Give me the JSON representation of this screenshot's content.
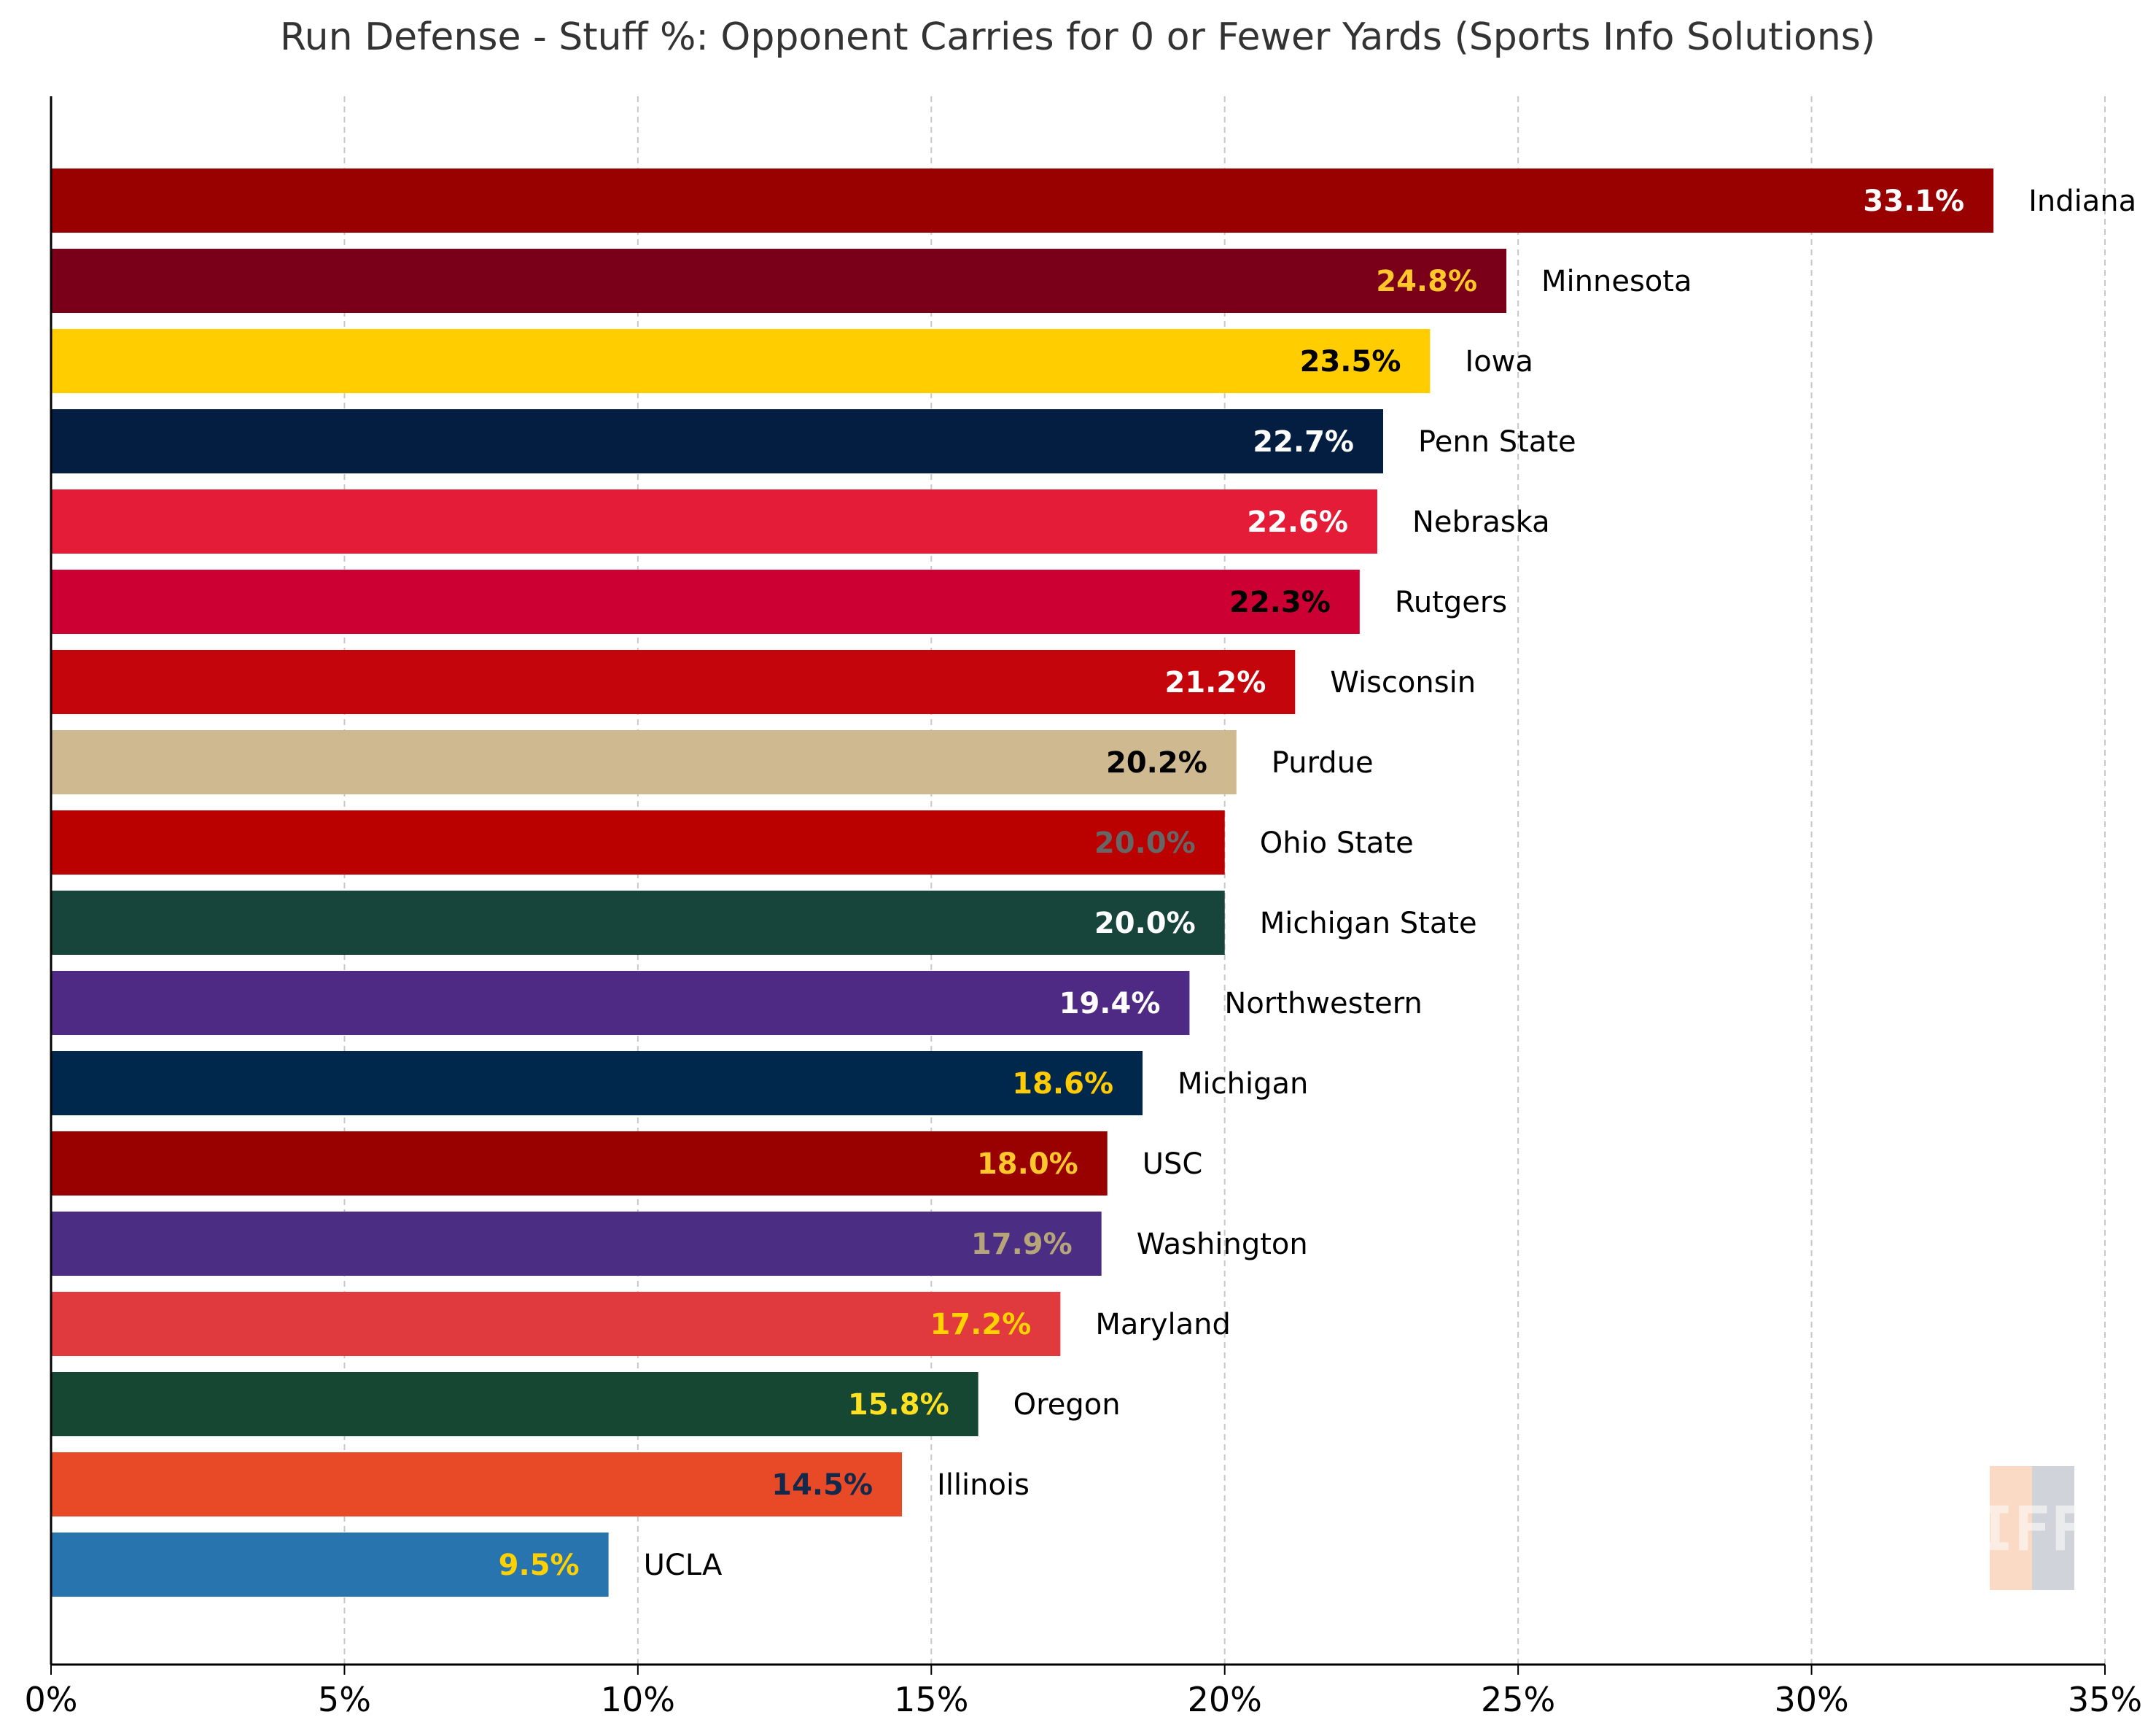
{
  "chart_data": {
    "type": "bar",
    "orientation": "horizontal",
    "title": "Run Defense - Stuff %: Opponent Carries for 0 or Fewer Yards (Sports Info Solutions)",
    "xlabel": "",
    "ylabel": "",
    "xlim": [
      0,
      35
    ],
    "x_ticks": [
      0,
      5,
      10,
      15,
      20,
      25,
      30,
      35
    ],
    "x_tick_labels": [
      "0%",
      "5%",
      "10%",
      "15%",
      "20%",
      "25%",
      "30%",
      "35%"
    ],
    "grid": "vertical dashed",
    "categories": [
      "Indiana",
      "Minnesota",
      "Iowa",
      "Penn State",
      "Nebraska",
      "Rutgers",
      "Wisconsin",
      "Purdue",
      "Ohio State",
      "Michigan State",
      "Northwestern",
      "Michigan",
      "USC",
      "Washington",
      "Maryland",
      "Oregon",
      "Illinois",
      "UCLA"
    ],
    "values": [
      33.1,
      24.8,
      23.5,
      22.7,
      22.6,
      22.3,
      21.2,
      20.2,
      20.0,
      20.0,
      19.4,
      18.6,
      18.0,
      17.9,
      17.2,
      15.8,
      14.5,
      9.5
    ],
    "value_labels": [
      "33.1%",
      "24.8%",
      "23.5%",
      "22.7%",
      "22.6%",
      "22.3%",
      "21.2%",
      "20.2%",
      "20.0%",
      "20.0%",
      "19.4%",
      "18.6%",
      "18.0%",
      "17.9%",
      "17.2%",
      "15.8%",
      "14.5%",
      "9.5%"
    ],
    "bar_colors": [
      "#990000",
      "#7A0019",
      "#FFCD00",
      "#041E42",
      "#E41C38",
      "#CC0033",
      "#C5050C",
      "#CFB991",
      "#BB0000",
      "#18453B",
      "#4E2A84",
      "#00274C",
      "#990000",
      "#4B2E83",
      "#E03A3E",
      "#154733",
      "#E84A27",
      "#2774AE"
    ],
    "label_colors": [
      "#FFFFFF",
      "#FFC72C",
      "#000000",
      "#FFFFFF",
      "#FFFFFF",
      "#000000",
      "#FFFFFF",
      "#000000",
      "#666666",
      "#FFFFFF",
      "#FFFFFF",
      "#FFCB05",
      "#FFC72C",
      "#B7A57A",
      "#FFD200",
      "#FEE123",
      "#13294B",
      "#FFD100"
    ]
  },
  "watermark": {
    "text": "IFF",
    "colors": [
      "#FAD9C5",
      "#D0D3D9"
    ]
  }
}
